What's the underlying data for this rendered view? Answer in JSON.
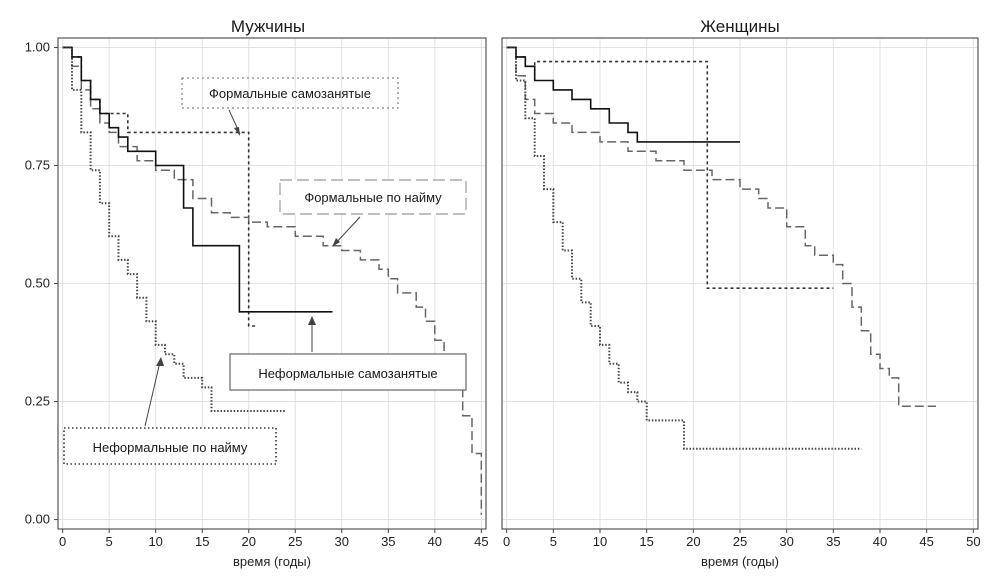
{
  "chart_data": [
    {
      "type": "line",
      "step": true,
      "title": "Мужчины",
      "xlabel": "время (годы)",
      "ylabel": "",
      "xlim": [
        -0.5,
        45.5
      ],
      "ylim": [
        -0.02,
        1.02
      ],
      "xticks": [
        "0",
        "5",
        "10",
        "15",
        "20",
        "25",
        "30",
        "35",
        "40",
        "45"
      ],
      "yticks": [
        "0.00",
        "0.25",
        "0.50",
        "0.75",
        "1.00"
      ],
      "grid": true,
      "series": [
        {
          "name": "Формальные самозанятые",
          "style": "dotted-short",
          "x": [
            0,
            1,
            2,
            3,
            4,
            5,
            6,
            7,
            20,
            21
          ],
          "y": [
            1.0,
            0.98,
            0.93,
            0.89,
            0.86,
            0.86,
            0.86,
            0.82,
            0.41,
            0.41
          ]
        },
        {
          "name": "Формальные по найму",
          "style": "dashed",
          "x": [
            0,
            1,
            2,
            3,
            4,
            5,
            6,
            8,
            10,
            12,
            14,
            16,
            18,
            20,
            22,
            25,
            28,
            30,
            32,
            34,
            35,
            36,
            38,
            39,
            40,
            41,
            42,
            43,
            44,
            45
          ],
          "y": [
            1.0,
            0.96,
            0.91,
            0.87,
            0.84,
            0.82,
            0.79,
            0.76,
            0.74,
            0.72,
            0.68,
            0.65,
            0.64,
            0.63,
            0.62,
            0.6,
            0.58,
            0.57,
            0.55,
            0.53,
            0.51,
            0.48,
            0.45,
            0.42,
            0.38,
            0.33,
            0.29,
            0.22,
            0.14,
            0.01
          ]
        },
        {
          "name": "Неформальные самозанятые",
          "style": "solid",
          "x": [
            0,
            1,
            2,
            3,
            4,
            5,
            6,
            7,
            10,
            13,
            14,
            15,
            19,
            29
          ],
          "y": [
            1.0,
            0.98,
            0.93,
            0.89,
            0.86,
            0.83,
            0.81,
            0.78,
            0.75,
            0.66,
            0.58,
            0.58,
            0.44,
            0.44
          ]
        },
        {
          "name": "Неформальные по найму",
          "style": "dotted-dense",
          "x": [
            0,
            1,
            2,
            3,
            4,
            5,
            6,
            7,
            8,
            9,
            10,
            11,
            12,
            13,
            15,
            16,
            24
          ],
          "y": [
            1.0,
            0.91,
            0.82,
            0.74,
            0.67,
            0.6,
            0.55,
            0.52,
            0.47,
            0.42,
            0.37,
            0.35,
            0.33,
            0.3,
            0.28,
            0.23,
            0.23
          ]
        }
      ]
    },
    {
      "type": "line",
      "step": true,
      "title": "Женщины",
      "xlabel": "время (годы)",
      "ylabel": "",
      "xlim": [
        -0.5,
        50.5
      ],
      "ylim": [
        -0.02,
        1.02
      ],
      "xticks": [
        "0",
        "5",
        "10",
        "15",
        "20",
        "25",
        "30",
        "35",
        "40",
        "45",
        "50"
      ],
      "yticks": [
        "0.00",
        "0.25",
        "0.50",
        "0.75",
        "1.00"
      ],
      "grid": true,
      "series": [
        {
          "name": "Формальные самозанятые",
          "style": "dotted-short",
          "x": [
            0,
            1,
            2,
            3,
            21.5,
            35
          ],
          "y": [
            1.0,
            0.98,
            0.96,
            0.97,
            0.49,
            0.49
          ]
        },
        {
          "name": "Формальные по найму",
          "style": "dashed",
          "x": [
            0,
            1,
            2,
            3,
            5,
            7,
            10,
            13,
            16,
            19,
            22,
            25,
            27,
            28,
            30,
            32,
            33,
            35,
            36,
            37,
            38,
            39,
            40,
            41,
            42,
            43,
            46
          ],
          "y": [
            1.0,
            0.94,
            0.89,
            0.86,
            0.84,
            0.82,
            0.8,
            0.78,
            0.76,
            0.74,
            0.72,
            0.7,
            0.68,
            0.66,
            0.62,
            0.58,
            0.56,
            0.54,
            0.5,
            0.45,
            0.4,
            0.35,
            0.32,
            0.3,
            0.24,
            0.24,
            0.24
          ]
        },
        {
          "name": "Неформальные самозанятые",
          "style": "solid",
          "x": [
            0,
            1,
            2,
            3,
            5,
            7,
            9,
            11,
            13,
            14,
            25
          ],
          "y": [
            1.0,
            0.98,
            0.96,
            0.93,
            0.91,
            0.89,
            0.87,
            0.84,
            0.82,
            0.8,
            0.8
          ]
        },
        {
          "name": "Неформальные по найму",
          "style": "dotted-dense",
          "x": [
            0,
            1,
            2,
            3,
            4,
            5,
            6,
            7,
            8,
            9,
            10,
            11,
            12,
            13,
            14,
            15,
            17,
            19,
            38
          ],
          "y": [
            1.0,
            0.93,
            0.85,
            0.77,
            0.7,
            0.63,
            0.57,
            0.51,
            0.46,
            0.41,
            0.37,
            0.33,
            0.29,
            0.27,
            0.25,
            0.21,
            0.21,
            0.15,
            0.15
          ]
        }
      ]
    }
  ],
  "annotations": {
    "formal_self": "Формальные самозанятые",
    "formal_hired": "Формальные по найму",
    "informal_self": "Неформальные самозанятые",
    "informal_hired": "Неформальные по найму"
  }
}
